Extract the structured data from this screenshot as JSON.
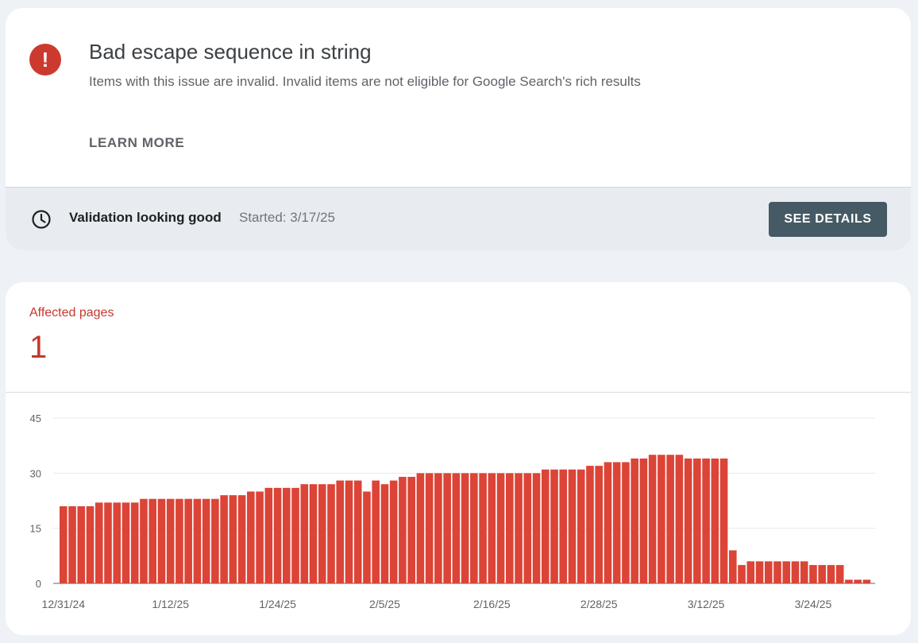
{
  "issue": {
    "icon": "error-icon",
    "icon_glyph": "!",
    "title": "Bad escape sequence in string",
    "description": "Items with this issue are invalid. Invalid items are not eligible for Google Search's rich results",
    "learn_more": "LEARN MORE"
  },
  "validation": {
    "icon": "clock-icon",
    "status": "Validation looking good",
    "started": "Started: 3/17/25",
    "button": "SEE DETAILS"
  },
  "summary": {
    "label": "Affected pages",
    "value": "1"
  },
  "colors": {
    "accent": "#c5372c",
    "bar": "#db4437",
    "button": "#455a64"
  },
  "chart_data": {
    "type": "bar",
    "ylim": [
      0,
      45
    ],
    "y_ticks": [
      "0",
      "15",
      "30",
      "45"
    ],
    "x_tick_labels": [
      "12/31/24",
      "1/12/25",
      "1/24/25",
      "2/5/25",
      "2/16/25",
      "2/28/25",
      "3/12/25",
      "3/24/25"
    ],
    "grid": true,
    "series": [
      {
        "values": [
          21,
          21,
          21,
          21,
          22,
          22,
          22,
          22,
          22,
          23,
          23,
          23,
          23,
          23,
          23,
          23,
          23,
          23,
          24,
          24,
          24,
          25,
          25,
          26,
          26,
          26,
          26,
          27,
          27,
          27,
          27,
          28,
          28,
          28,
          25,
          28,
          27,
          28,
          29,
          29,
          30,
          30,
          30,
          30,
          30,
          30,
          30,
          30,
          30,
          30,
          30,
          30,
          30,
          30,
          31,
          31,
          31,
          31,
          31,
          32,
          32,
          33,
          33,
          33,
          34,
          34,
          35,
          35,
          35,
          35,
          34,
          34,
          34,
          34,
          34,
          9,
          5,
          6,
          6,
          6,
          6,
          6,
          6,
          6,
          5,
          5,
          5,
          5,
          1,
          1,
          1
        ]
      }
    ]
  }
}
